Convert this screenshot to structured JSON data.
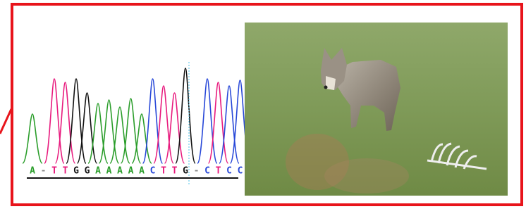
{
  "sequence": [
    "A",
    "-",
    "T",
    "T",
    "G",
    "G",
    "A",
    "A",
    "A",
    "A",
    "A",
    "C",
    "T",
    "T",
    "G",
    "-",
    "C",
    "T",
    "C",
    "C"
  ]
}
